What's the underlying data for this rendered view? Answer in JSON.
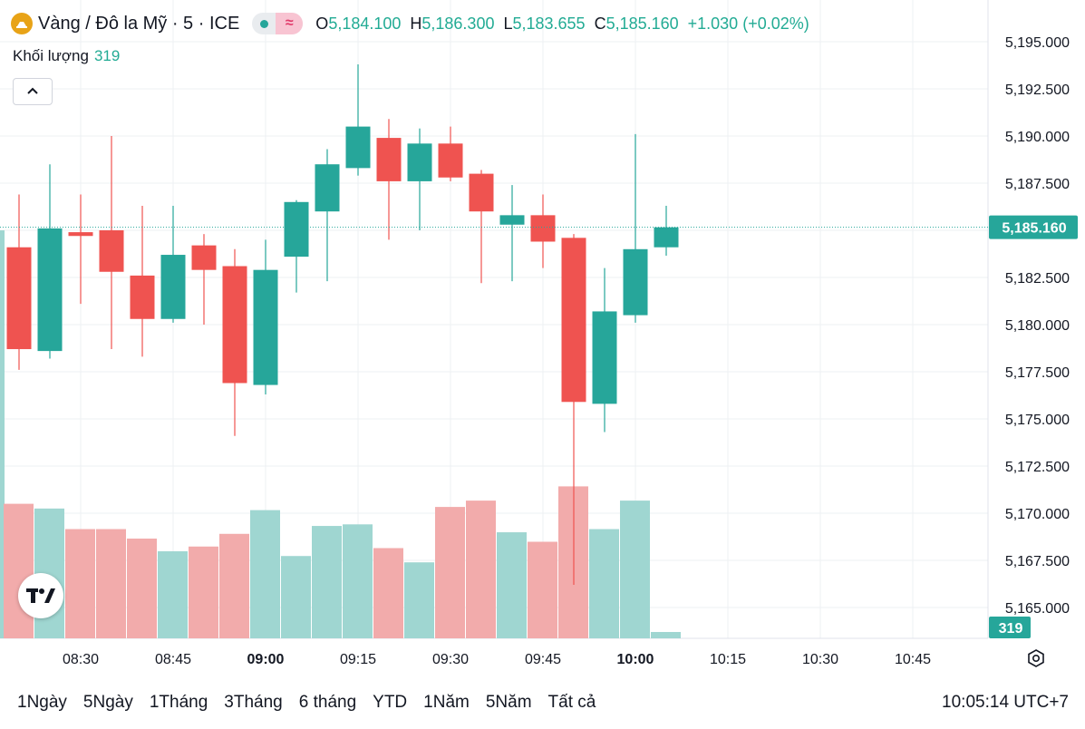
{
  "header": {
    "symbol_title": "Vàng / Đô la Mỹ · 5 · ICE",
    "open_label": "O",
    "open_value": "5,184.100",
    "high_label": "H",
    "high_value": "5,186.300",
    "low_label": "L",
    "low_value": "5,183.655",
    "close_label": "C",
    "close_value": "5,185.160",
    "change": "+1.030 (+0.02%)",
    "wave_glyph": "≈"
  },
  "volume_legend": {
    "label": "Khối lượng",
    "value": "319"
  },
  "colors": {
    "up": "#26a69a",
    "down": "#ef5350",
    "up_volume": "#9fd6d1",
    "down_volume": "#f2abab",
    "grid": "#eef0f3",
    "accent": "#22ab94"
  },
  "icons": {
    "symbol": "gold-icon",
    "collapse": "chevron-up-icon",
    "logo": "tradingview-logo",
    "settings": "gear-icon"
  },
  "chart_data": {
    "type": "candlestick",
    "interval_minutes": 5,
    "y_ticks": [
      "5,195.000",
      "5,192.500",
      "5,190.000",
      "5,187.500",
      "5,185.000",
      "5,182.500",
      "5,180.000",
      "5,177.500",
      "5,175.000",
      "5,172.500",
      "5,170.000",
      "5,167.500",
      "5,165.000"
    ],
    "y_tick_values": [
      5195,
      5192.5,
      5190,
      5187.5,
      5185,
      5182.5,
      5180,
      5177.5,
      5175,
      5172.5,
      5170,
      5167.5,
      5165
    ],
    "ylim": [
      5163.3,
      5196.4
    ],
    "x_ticks": [
      {
        "label": "08:30",
        "t": "08:30",
        "bold": false
      },
      {
        "label": "08:45",
        "t": "08:45",
        "bold": false
      },
      {
        "label": "09:00",
        "t": "09:00",
        "bold": true
      },
      {
        "label": "09:15",
        "t": "09:15",
        "bold": false
      },
      {
        "label": "09:30",
        "t": "09:30",
        "bold": false
      },
      {
        "label": "09:45",
        "t": "09:45",
        "bold": false
      },
      {
        "label": "10:00",
        "t": "10:00",
        "bold": true
      },
      {
        "label": "10:15",
        "t": "10:15",
        "bold": false
      },
      {
        "label": "10:30",
        "t": "10:30",
        "bold": false
      },
      {
        "label": "10:45",
        "t": "10:45",
        "bold": false
      }
    ],
    "x_range": [
      "08:20",
      "10:55"
    ],
    "last_price": "5,185.160",
    "last_price_value": 5185.16,
    "last_volume": "319",
    "candles": [
      {
        "t": "08:20",
        "o": 5184.1,
        "h": 5186.9,
        "l": 5177.6,
        "c": 5178.7,
        "v": 0.85
      },
      {
        "t": "08:25",
        "o": 5178.6,
        "h": 5188.5,
        "l": 5178.2,
        "c": 5185.1,
        "v": 0.82
      },
      {
        "t": "08:30",
        "o": 5184.9,
        "h": 5186.9,
        "l": 5181.1,
        "c": 5184.7,
        "v": 0.69
      },
      {
        "t": "08:35",
        "o": 5185.0,
        "h": 5190.0,
        "l": 5178.7,
        "c": 5182.8,
        "v": 0.69
      },
      {
        "t": "08:40",
        "o": 5182.6,
        "h": 5186.3,
        "l": 5178.3,
        "c": 5180.3,
        "v": 0.63
      },
      {
        "t": "08:45",
        "o": 5180.3,
        "h": 5186.3,
        "l": 5180.1,
        "c": 5183.7,
        "v": 0.55
      },
      {
        "t": "08:50",
        "o": 5184.2,
        "h": 5184.8,
        "l": 5180.0,
        "c": 5182.9,
        "v": 0.58
      },
      {
        "t": "08:55",
        "o": 5183.1,
        "h": 5184.0,
        "l": 5174.1,
        "c": 5176.9,
        "v": 0.66
      },
      {
        "t": "09:00",
        "o": 5176.8,
        "h": 5184.5,
        "l": 5176.3,
        "c": 5182.9,
        "v": 0.81
      },
      {
        "t": "09:05",
        "o": 5183.6,
        "h": 5186.6,
        "l": 5181.7,
        "c": 5186.5,
        "v": 0.52
      },
      {
        "t": "09:10",
        "o": 5186.0,
        "h": 5189.3,
        "l": 5182.3,
        "c": 5188.5,
        "v": 0.71
      },
      {
        "t": "09:15",
        "o": 5188.3,
        "h": 5193.8,
        "l": 5187.9,
        "c": 5190.5,
        "v": 0.72
      },
      {
        "t": "09:20",
        "o": 5189.9,
        "h": 5190.9,
        "l": 5184.5,
        "c": 5187.6,
        "v": 0.57
      },
      {
        "t": "09:25",
        "o": 5187.6,
        "h": 5190.4,
        "l": 5185.0,
        "c": 5189.6,
        "v": 0.48
      },
      {
        "t": "09:30",
        "o": 5189.6,
        "h": 5190.5,
        "l": 5187.6,
        "c": 5187.8,
        "v": 0.83
      },
      {
        "t": "09:35",
        "o": 5188.0,
        "h": 5188.2,
        "l": 5182.2,
        "c": 5186.0,
        "v": 0.87
      },
      {
        "t": "09:40",
        "o": 5185.3,
        "h": 5187.4,
        "l": 5182.3,
        "c": 5185.8,
        "v": 0.67
      },
      {
        "t": "09:45",
        "o": 5185.8,
        "h": 5186.9,
        "l": 5183.0,
        "c": 5184.4,
        "v": 0.61
      },
      {
        "t": "09:50",
        "o": 5184.6,
        "h": 5184.8,
        "l": 5166.2,
        "c": 5175.9,
        "v": 0.96
      },
      {
        "t": "09:55",
        "o": 5175.8,
        "h": 5183.0,
        "l": 5174.3,
        "c": 5180.7,
        "v": 0.69
      },
      {
        "t": "10:00",
        "o": 5180.5,
        "h": 5190.1,
        "l": 5180.1,
        "c": 5184.0,
        "v": 0.87
      },
      {
        "t": "10:05",
        "o": 5184.1,
        "h": 5186.3,
        "l": 5183.655,
        "c": 5185.16,
        "v": 0.04
      }
    ]
  },
  "time_ranges": [
    "1Ngày",
    "5Ngày",
    "1Tháng",
    "3Tháng",
    "6 tháng",
    "YTD",
    "1Năm",
    "5Năm",
    "Tất cả"
  ],
  "clock": "10:05:14 UTC+7"
}
